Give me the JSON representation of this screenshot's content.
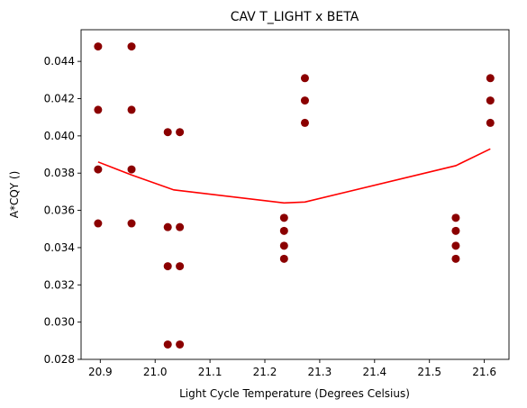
{
  "chart_data": {
    "type": "scatter",
    "title": "CAV T_LIGHT x BETA",
    "xlabel": "Light Cycle Temperature (Degrees Celsius)",
    "ylabel": "A*CQY ()",
    "xlim": [
      20.865,
      21.645
    ],
    "ylim": [
      0.028,
      0.0457
    ],
    "xticks": [
      20.9,
      21.0,
      21.1,
      21.2,
      21.3,
      21.4,
      21.5,
      21.6
    ],
    "xtick_labels": [
      "20.9",
      "21.0",
      "21.1",
      "21.2",
      "21.3",
      "21.4",
      "21.5",
      "21.6"
    ],
    "yticks": [
      0.028,
      0.03,
      0.032,
      0.034,
      0.036,
      0.038,
      0.04,
      0.042,
      0.044
    ],
    "ytick_labels": [
      "0.028",
      "0.030",
      "0.032",
      "0.034",
      "0.036",
      "0.038",
      "0.040",
      "0.042",
      "0.044"
    ],
    "grid": false,
    "series": [
      {
        "type": "scatter",
        "color": "#8b0000",
        "points": [
          [
            20.896,
            0.0448
          ],
          [
            20.896,
            0.0414
          ],
          [
            20.896,
            0.0382
          ],
          [
            20.896,
            0.0353
          ],
          [
            20.957,
            0.0448
          ],
          [
            20.957,
            0.0414
          ],
          [
            20.957,
            0.0382
          ],
          [
            20.957,
            0.0353
          ],
          [
            21.023,
            0.0402
          ],
          [
            21.023,
            0.0351
          ],
          [
            21.023,
            0.033
          ],
          [
            21.023,
            0.0288
          ],
          [
            21.045,
            0.0402
          ],
          [
            21.045,
            0.0351
          ],
          [
            21.045,
            0.033
          ],
          [
            21.045,
            0.0288
          ],
          [
            21.235,
            0.0356
          ],
          [
            21.235,
            0.0349
          ],
          [
            21.235,
            0.0341
          ],
          [
            21.235,
            0.0334
          ],
          [
            21.273,
            0.0431
          ],
          [
            21.273,
            0.0419
          ],
          [
            21.273,
            0.0407
          ],
          [
            21.548,
            0.0356
          ],
          [
            21.548,
            0.0349
          ],
          [
            21.548,
            0.0341
          ],
          [
            21.548,
            0.0334
          ],
          [
            21.611,
            0.0431
          ],
          [
            21.611,
            0.0419
          ],
          [
            21.611,
            0.0407
          ]
        ]
      },
      {
        "type": "line",
        "color": "#ff0000",
        "points": [
          [
            20.896,
            0.0386
          ],
          [
            20.957,
            0.0379
          ],
          [
            21.034,
            0.0371
          ],
          [
            21.235,
            0.0364
          ],
          [
            21.273,
            0.03645
          ],
          [
            21.548,
            0.0384
          ],
          [
            21.611,
            0.0393
          ]
        ]
      }
    ]
  }
}
